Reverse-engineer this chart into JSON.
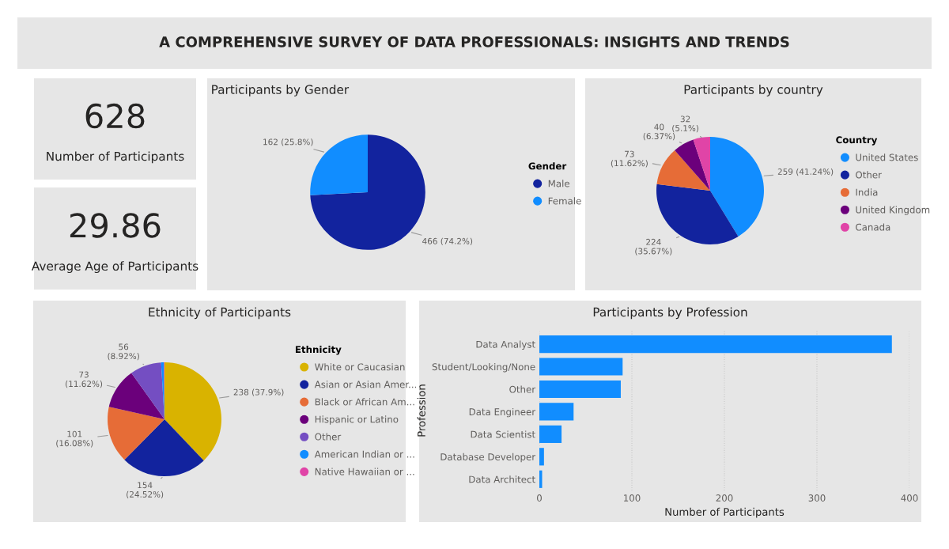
{
  "chart_data": [
    {
      "type": "other",
      "title": "A COMPREHENSIVE SURVEY OF DATA PROFESSIONALS: INSIGHTS AND TRENDS"
    },
    {
      "type": "other",
      "annotations": [
        "628",
        "Number of Participants"
      ]
    },
    {
      "type": "other",
      "annotations": [
        "29.86",
        "Average Age of Participants"
      ]
    },
    {
      "type": "pie",
      "title": "Participants by Gender",
      "legend_title": "Gender",
      "legend": "right",
      "categories": [
        "Male",
        "Female"
      ],
      "values": [
        466,
        162
      ],
      "colors": [
        "#12239e",
        "#118dff"
      ],
      "value_labels": [
        "466 (74.2%)",
        "162 (25.8%)"
      ]
    },
    {
      "type": "pie",
      "title": "Participants by country",
      "legend_title": "Country",
      "legend": "right",
      "categories": [
        "United States",
        "Other",
        "India",
        "United Kingdom",
        "Canada"
      ],
      "values": [
        259,
        224,
        73,
        40,
        32
      ],
      "colors": [
        "#118dff",
        "#12239e",
        "#e66c37",
        "#6b007b",
        "#e044a7"
      ],
      "value_labels": [
        "259 (41.24%)",
        "224 (35.67%)",
        "73 (11.62%)",
        "40 (6.37%)",
        "32 (5.1%)"
      ]
    },
    {
      "type": "pie",
      "title": "Ethnicity of Participants",
      "legend_title": "Ethnicity",
      "legend": "right",
      "categories": [
        "White or Caucasian",
        "Asian or Asian Amer...",
        "Black or African Am...",
        "Hispanic or Latino",
        "Other",
        "American Indian or ...",
        "Native Hawaiian or ..."
      ],
      "values": [
        238,
        154,
        101,
        73,
        56,
        5,
        1
      ],
      "colors": [
        "#d9b300",
        "#12239e",
        "#e66c37",
        "#6b007b",
        "#744ec2",
        "#118dff",
        "#e044a7"
      ],
      "value_labels": [
        "238 (37.9%)",
        "154 (24.52%)",
        "101 (16.08%)",
        "73 (11.62%)",
        "56 (8.92%)",
        null,
        null
      ]
    },
    {
      "type": "bar",
      "orientation": "horizontal",
      "title": "Participants by Profession",
      "xlabel": "Number of Participants",
      "ylabel": "Profession",
      "categories": [
        "Data Analyst",
        "Student/Looking/None",
        "Other",
        "Data Engineer",
        "Data Scientist",
        "Database Developer",
        "Data Architect"
      ],
      "values": [
        381,
        90,
        88,
        37,
        24,
        5,
        3
      ],
      "color": "#118dff",
      "xlim": [
        0,
        400
      ],
      "xticks": [
        0,
        100,
        200,
        300,
        400
      ],
      "grid": "x"
    }
  ]
}
